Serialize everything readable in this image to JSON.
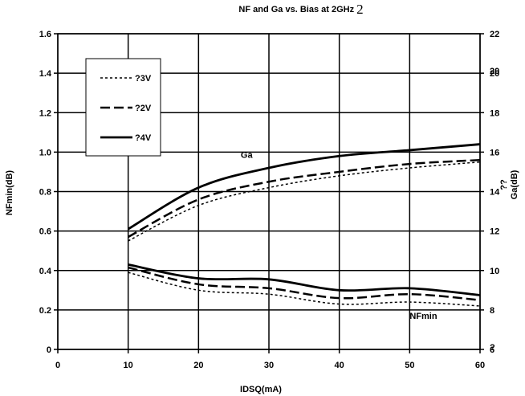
{
  "chart_data": {
    "type": "line",
    "title": "NF and Ga vs. Bias at 2GHz",
    "title_superscript": "2",
    "xlabel": "IDSQ(mA)",
    "ylabel_left": "NFmin(dB)",
    "ylabel_right_prefix": "??",
    "ylabel_right": "Ga(dB)",
    "xlim": [
      0,
      60
    ],
    "ylim_left": [
      0,
      1.6
    ],
    "ylim_right": [
      6,
      22
    ],
    "x_ticks": [
      "0",
      "10",
      "20",
      "30",
      "40",
      "50",
      "60"
    ],
    "y_left_ticks": [
      "0",
      "0.2",
      "0.4",
      "0.6",
      "0.8",
      "1.0",
      "1.2",
      "1.4",
      "1.6"
    ],
    "y_right_ticks": [
      "6",
      "8",
      "10",
      "12",
      "14",
      "16",
      "18",
      "20",
      "22"
    ],
    "y_right_overlap_ticks": [
      {
        "value": 20,
        "label": "20"
      },
      {
        "value": 6,
        "label": "?"
      }
    ],
    "grid": true,
    "legend_placement": "top-left",
    "legend": [
      {
        "label": "?3V",
        "dash": "dotted"
      },
      {
        "label": "?2V",
        "dash": "dashed"
      },
      {
        "label": "?4V",
        "dash": "solid"
      }
    ],
    "annotations": [
      {
        "text": "Ga",
        "x": 26,
        "y_left": 0.97
      },
      {
        "text": "NFmin",
        "x": 50,
        "y_left": 0.155
      }
    ],
    "series": [
      {
        "name": "?3V",
        "axis": "left",
        "dash": "dotted",
        "x": [
          10,
          20,
          30,
          40,
          50,
          60
        ],
        "values": [
          0.39,
          0.3,
          0.28,
          0.23,
          0.24,
          0.22
        ]
      },
      {
        "name": "?2V",
        "axis": "left",
        "dash": "dashed",
        "x": [
          10,
          20,
          30,
          40,
          50,
          60
        ],
        "values": [
          0.415,
          0.33,
          0.31,
          0.26,
          0.28,
          0.25
        ]
      },
      {
        "name": "?4V",
        "axis": "left",
        "dash": "solid",
        "x": [
          10,
          20,
          30,
          40,
          50,
          60
        ],
        "values": [
          0.43,
          0.36,
          0.355,
          0.3,
          0.31,
          0.275
        ]
      },
      {
        "name": "?3V",
        "axis": "right",
        "dash": "dotted",
        "x": [
          10,
          20,
          30,
          40,
          50,
          60
        ],
        "values": [
          11.5,
          13.3,
          14.2,
          14.8,
          15.2,
          15.5
        ]
      },
      {
        "name": "?2V",
        "axis": "right",
        "dash": "dashed",
        "x": [
          10,
          20,
          30,
          40,
          50,
          60
        ],
        "values": [
          11.7,
          13.6,
          14.5,
          15.0,
          15.4,
          15.6
        ]
      },
      {
        "name": "?4V",
        "axis": "right",
        "dash": "solid",
        "x": [
          10,
          20,
          30,
          40,
          50,
          60
        ],
        "values": [
          12.1,
          14.2,
          15.2,
          15.8,
          16.1,
          16.4
        ]
      }
    ]
  }
}
